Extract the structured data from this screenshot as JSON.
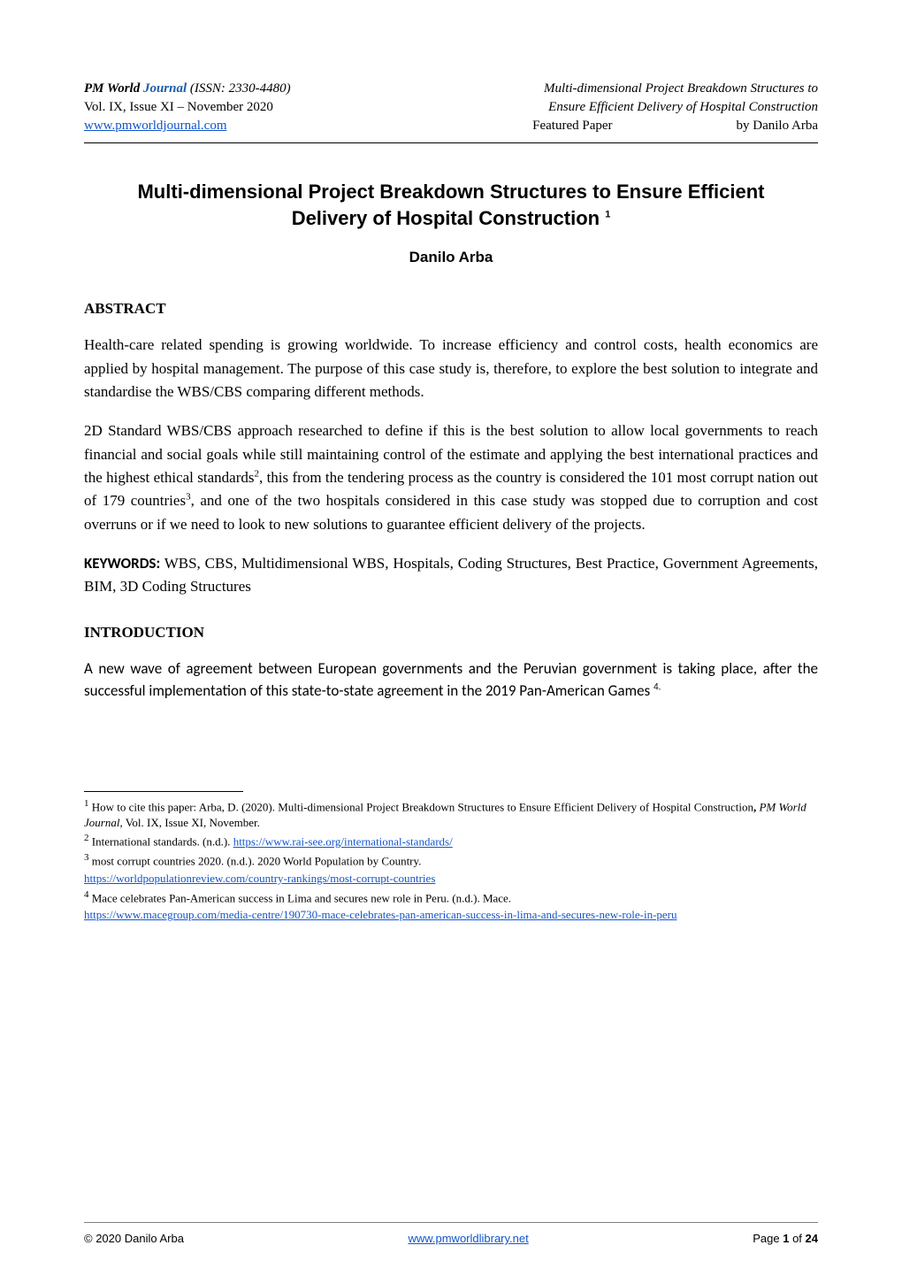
{
  "header": {
    "journal_prefix": "PM World ",
    "journal_word": "Journal",
    "issn": "  (ISSN: 2330-4480)",
    "vol_issue": "Vol. IX, Issue XI – November 2020",
    "site_url": "www.pmworldjournal.com",
    "right_line1": "Multi-dimensional Project Breakdown Structures to",
    "right_line2": "Ensure Efficient Delivery of Hospital Construction",
    "right_line3_left": "Featured Paper",
    "right_line3_right": "by Danilo Arba"
  },
  "title": {
    "line": "Multi-dimensional Project Breakdown Structures to Ensure Efficient Delivery of Hospital Construction ",
    "sup": "1"
  },
  "author": "Danilo Arba",
  "abstract": {
    "heading": "ABSTRACT",
    "para1": "Health-care related spending is growing worldwide. To increase efficiency and control costs, health economics are applied by hospital management.  The purpose of this case study is, therefore, to explore the best solution to integrate and standardise the WBS/CBS comparing different methods.",
    "para2_a": "2D Standard WBS/CBS approach researched to define if this is the best solution to allow local governments to reach financial and social goals while still maintaining control of the estimate and applying the best international practices and the highest ethical standards",
    "para2_sup1": "2",
    "para2_b": ", this from the tendering process as the country is considered the 101 most corrupt nation out of 179 countries",
    "para2_sup2": "3",
    "para2_c": ", and one of the two hospitals considered in this case study was stopped due to corruption and cost overruns or if we need to look to new solutions to guarantee efficient delivery of the projects."
  },
  "keywords": {
    "label": "KEYWORDS:",
    "text": " WBS, CBS, Multidimensional WBS, Hospitals, Coding Structures, Best Practice, Government Agreements, BIM, 3D Coding Structures"
  },
  "introduction": {
    "heading": "INTRODUCTION",
    "para1_a": "A new wave of agreement between European governments and the Peruvian government is taking place, after the successful implementation of this state-to-state agreement in the 2019 Pan-American Games ",
    "para1_sup": "4."
  },
  "footnotes": {
    "f1_a": " How to cite this paper: Arba, D. (2020). Multi-dimensional Project Breakdown Structures to Ensure Efficient Delivery of Hospital Construction",
    "f1_b": ", ",
    "f1_journal": "PM World Journal",
    "f1_c": ", Vol. IX, Issue XI, November.",
    "f2_a": " International standards. (n.d.). ",
    "f2_link": "https://www.rai-see.org/international-standards/",
    "f3_a": " most corrupt countries 2020. (n.d.). 2020 World Population by Country.",
    "f3_link": "https://worldpopulationreview.com/country-rankings/most-corrupt-countries",
    "f4_a": " Mace celebrates Pan-American success in Lima and secures new role in Peru. (n.d.). Mace.",
    "f4_link": "https://www.macegroup.com/media-centre/190730-mace-celebrates-pan-american-success-in-lima-and-secures-new-role-in-peru"
  },
  "footer": {
    "copyright": "© 2020 Danilo Arba",
    "center_url": "www.pmworldlibrary.net",
    "page_label": "Page ",
    "page_current": "1",
    "page_of": " of ",
    "page_total": "24"
  }
}
